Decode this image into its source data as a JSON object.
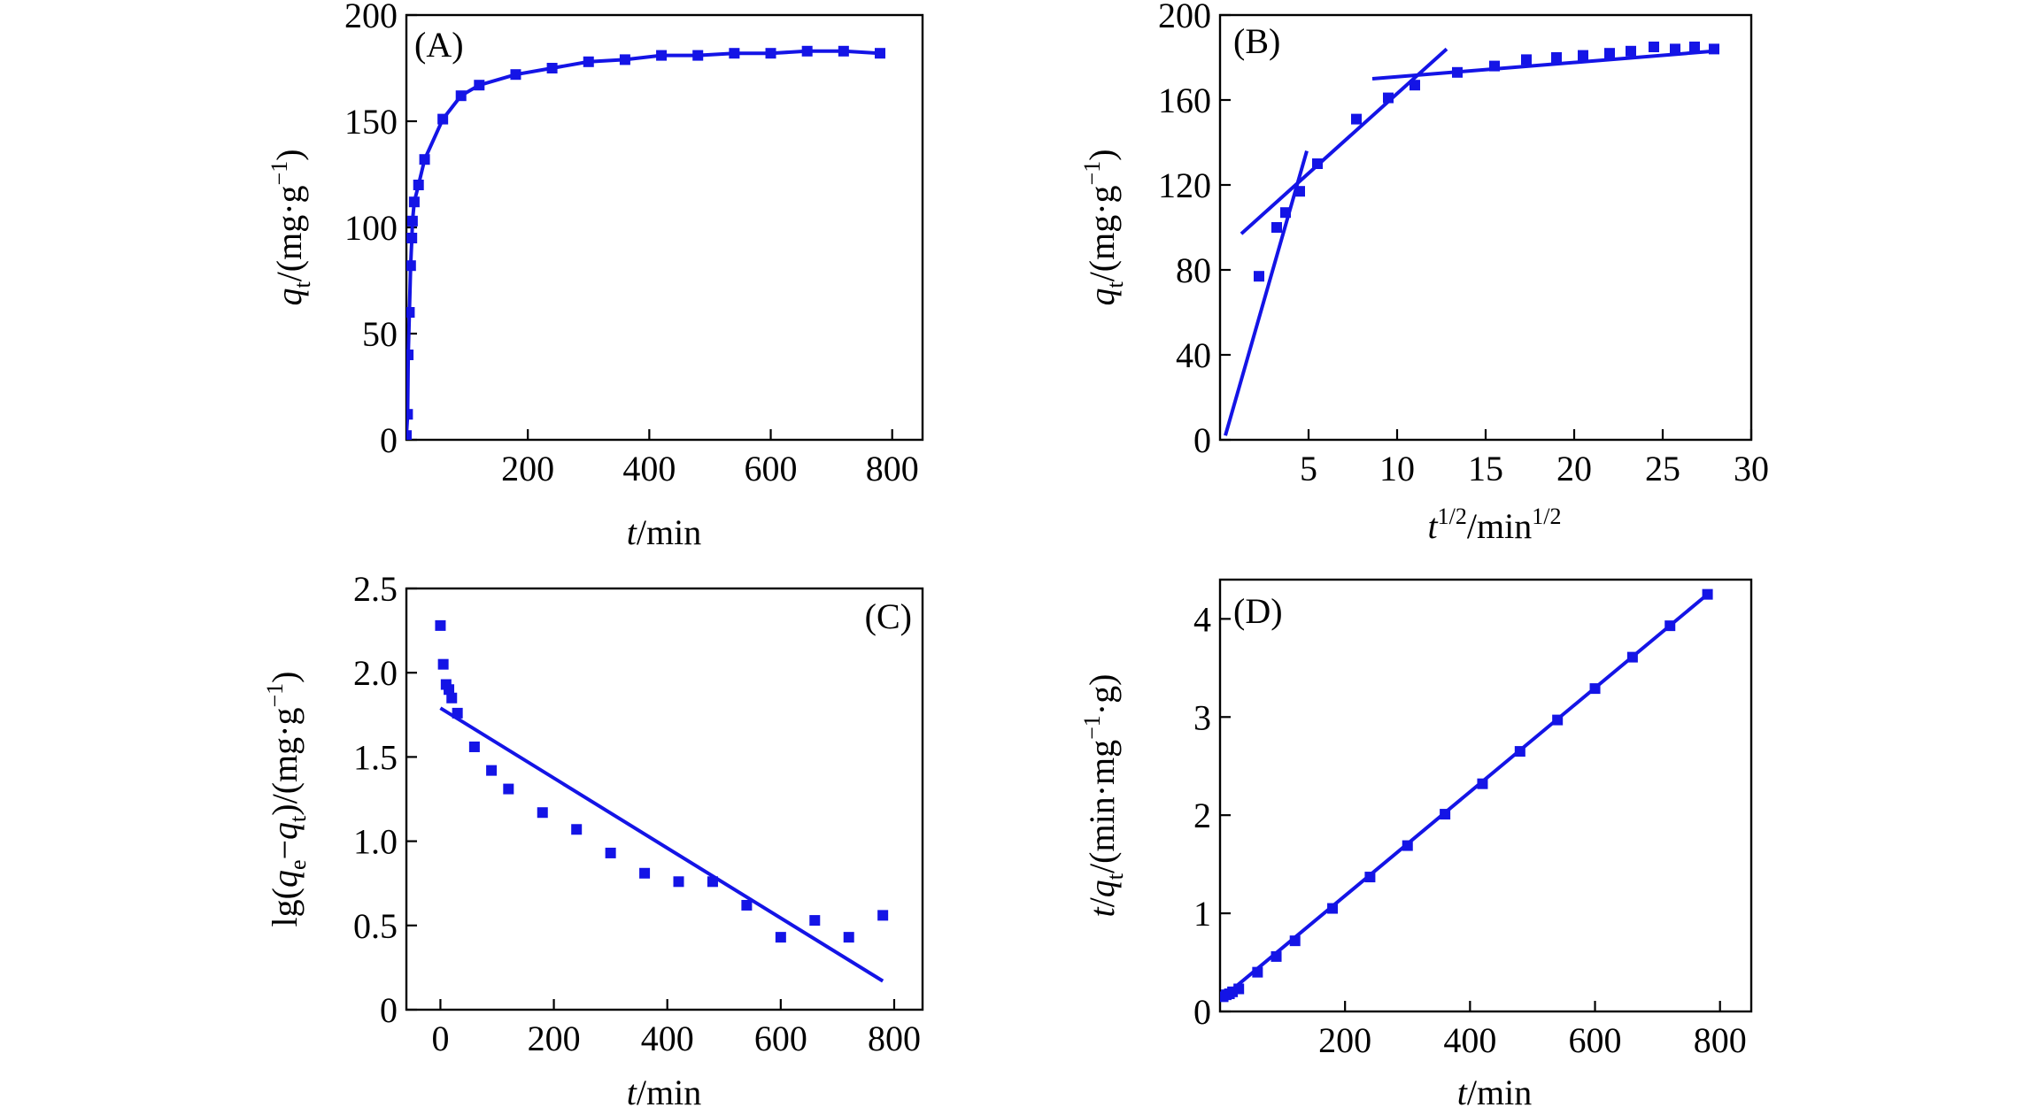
{
  "chart_data": [
    {
      "type": "scatter",
      "panel_label": "(A)",
      "xlabel": {
        "italic": "t",
        "rest": "/min"
      },
      "ylabel": {
        "italic": "q",
        "sub": "t",
        "rest": "/(mg·g",
        "sup": "−1",
        "close": ")"
      },
      "xlim": [
        0,
        850
      ],
      "ylim": [
        0,
        200
      ],
      "xticks": [
        200,
        400,
        600,
        800
      ],
      "xtick_labels": [
        "200",
        "400",
        "600",
        "800"
      ],
      "yticks": [
        0,
        50,
        100,
        150,
        200
      ],
      "ytick_labels": [
        "0",
        "50",
        "100",
        "150",
        "200"
      ],
      "points": [
        [
          0,
          2
        ],
        [
          2,
          12
        ],
        [
          3,
          40
        ],
        [
          5,
          60
        ],
        [
          7,
          82
        ],
        [
          9,
          95
        ],
        [
          10,
          103
        ],
        [
          13,
          112
        ],
        [
          20,
          120
        ],
        [
          30,
          132
        ],
        [
          60,
          151
        ],
        [
          90,
          162
        ],
        [
          120,
          167
        ],
        [
          180,
          172
        ],
        [
          240,
          175
        ],
        [
          300,
          178
        ],
        [
          360,
          179
        ],
        [
          420,
          181
        ],
        [
          480,
          181
        ],
        [
          540,
          182
        ],
        [
          600,
          182
        ],
        [
          660,
          183
        ],
        [
          720,
          183
        ],
        [
          780,
          182
        ]
      ],
      "fit_curve": [
        [
          0,
          2
        ],
        [
          2,
          12
        ],
        [
          3,
          40
        ],
        [
          5,
          60
        ],
        [
          7,
          82
        ],
        [
          9,
          95
        ],
        [
          10,
          103
        ],
        [
          13,
          112
        ],
        [
          20,
          120
        ],
        [
          30,
          132
        ],
        [
          60,
          151
        ],
        [
          90,
          162
        ],
        [
          120,
          167
        ],
        [
          180,
          172
        ],
        [
          240,
          175
        ],
        [
          300,
          178
        ],
        [
          360,
          179
        ],
        [
          420,
          181
        ],
        [
          480,
          181
        ],
        [
          540,
          182
        ],
        [
          600,
          182
        ],
        [
          660,
          183
        ],
        [
          720,
          183
        ],
        [
          780,
          182
        ]
      ]
    },
    {
      "type": "scatter",
      "panel_label": "(B)",
      "xlabel": {
        "italic": "t",
        "sup": "1/2",
        "rest": "/min",
        "sup2": "1/2"
      },
      "ylabel": {
        "italic": "q",
        "sub": "t",
        "rest": "/(mg·g",
        "sup": "−1",
        "close": ")"
      },
      "xlim": [
        0,
        30
      ],
      "ylim": [
        0,
        200
      ],
      "xticks": [
        5,
        10,
        15,
        20,
        25,
        30
      ],
      "xtick_labels": [
        "5",
        "10",
        "15",
        "20",
        "25",
        "30"
      ],
      "yticks": [
        0,
        40,
        80,
        120,
        160,
        200
      ],
      "ytick_labels": [
        "0",
        "40",
        "80",
        "120",
        "160",
        "200"
      ],
      "points": [
        [
          2.2,
          77
        ],
        [
          3.2,
          100
        ],
        [
          3.7,
          107
        ],
        [
          4.5,
          117
        ],
        [
          5.5,
          130
        ],
        [
          7.7,
          151
        ],
        [
          9.5,
          161
        ],
        [
          11,
          167
        ],
        [
          13.4,
          173
        ],
        [
          15.5,
          176
        ],
        [
          17.3,
          179
        ],
        [
          19,
          180
        ],
        [
          20.5,
          181
        ],
        [
          22,
          182
        ],
        [
          23.2,
          183
        ],
        [
          24.5,
          185
        ],
        [
          25.7,
          184
        ],
        [
          26.8,
          185
        ],
        [
          27.9,
          184
        ]
      ],
      "fit_lines": [
        {
          "x": [
            0.3,
            4.9
          ],
          "y": [
            2,
            136
          ]
        },
        {
          "x": [
            1.2,
            12.8
          ],
          "y": [
            97,
            184
          ]
        },
        {
          "x": [
            8.6,
            27.9
          ],
          "y": [
            170,
            183
          ]
        }
      ]
    },
    {
      "type": "scatter",
      "panel_label": "(C)",
      "xlabel": {
        "italic": "t",
        "rest": "/min"
      },
      "ylabel": {
        "pre": "lg(",
        "italic": "q",
        "sub": "e",
        "mid": "−",
        "italic2": "q",
        "sub2": "t",
        "rest": ")/(mg·g",
        "sup": "−1",
        "close": ")"
      },
      "xlim": [
        -60,
        850
      ],
      "ylim": [
        0,
        2.5
      ],
      "xticks": [
        0,
        200,
        400,
        600,
        800
      ],
      "xtick_labels": [
        "0",
        "200",
        "400",
        "600",
        "800"
      ],
      "yticks": [
        0,
        0.5,
        1.0,
        1.5,
        2.0,
        2.5
      ],
      "ytick_labels": [
        "0",
        "0.5",
        "1.0",
        "1.5",
        "2.0",
        "2.5"
      ],
      "points": [
        [
          0,
          2.28
        ],
        [
          5,
          2.05
        ],
        [
          10,
          1.93
        ],
        [
          15,
          1.9
        ],
        [
          20,
          1.85
        ],
        [
          30,
          1.76
        ],
        [
          60,
          1.56
        ],
        [
          90,
          1.42
        ],
        [
          120,
          1.31
        ],
        [
          180,
          1.17
        ],
        [
          240,
          1.07
        ],
        [
          300,
          0.93
        ],
        [
          360,
          0.81
        ],
        [
          420,
          0.76
        ],
        [
          480,
          0.76
        ],
        [
          540,
          0.62
        ],
        [
          600,
          0.43
        ],
        [
          660,
          0.53
        ],
        [
          720,
          0.43
        ],
        [
          780,
          0.56
        ]
      ],
      "fit_lines": [
        {
          "x": [
            0,
            780
          ],
          "y": [
            1.79,
            0.17
          ]
        }
      ]
    },
    {
      "type": "scatter",
      "panel_label": "(D)",
      "xlabel": {
        "italic": "t",
        "rest": "/min"
      },
      "ylabel": {
        "italic": "t",
        "slash": "/",
        "italic2": "q",
        "sub": "t",
        "rest": "/(min·mg",
        "sup": "−1",
        "close": "·g)"
      },
      "xlim": [
        0,
        850
      ],
      "ylim": [
        0,
        4.4
      ],
      "xticks": [
        200,
        400,
        600,
        800
      ],
      "xtick_labels": [
        "200",
        "400",
        "600",
        "800"
      ],
      "yticks": [
        0,
        1,
        2,
        3,
        4
      ],
      "ytick_labels": [
        "0",
        "1",
        "2",
        "3",
        "4"
      ],
      "points": [
        [
          5,
          0.15
        ],
        [
          10,
          0.17
        ],
        [
          15,
          0.18
        ],
        [
          20,
          0.2
        ],
        [
          30,
          0.23
        ],
        [
          60,
          0.4
        ],
        [
          90,
          0.56
        ],
        [
          120,
          0.72
        ],
        [
          180,
          1.05
        ],
        [
          240,
          1.37
        ],
        [
          300,
          1.69
        ],
        [
          360,
          2.01
        ],
        [
          420,
          2.32
        ],
        [
          480,
          2.65
        ],
        [
          540,
          2.97
        ],
        [
          600,
          3.29
        ],
        [
          660,
          3.61
        ],
        [
          720,
          3.93
        ],
        [
          780,
          4.25
        ]
      ],
      "fit_lines": [
        {
          "x": [
            0,
            780
          ],
          "y": [
            0.12,
            4.25
          ]
        }
      ]
    }
  ]
}
